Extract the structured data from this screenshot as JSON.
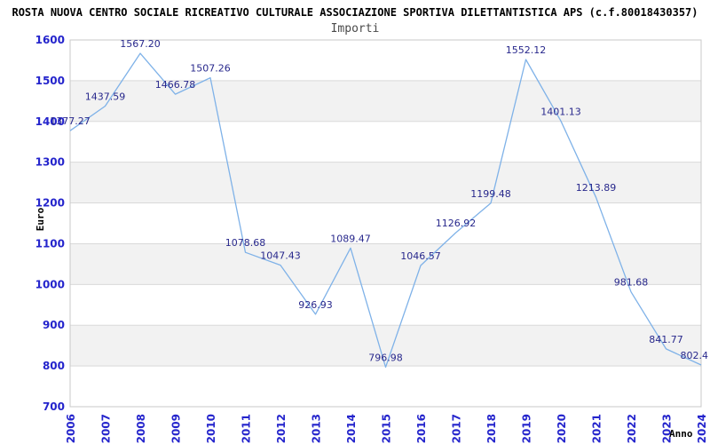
{
  "header": {
    "title": "ROSTA NUOVA CENTRO SOCIALE RICREATIVO CULTURALE ASSOCIAZIONE SPORTIVA DILETTANTISTICA APS (c.f.80018430357)",
    "subtitle": "Importi"
  },
  "chart_data": {
    "type": "line",
    "title": "Importi",
    "xlabel": "Anno",
    "ylabel": "Euro",
    "categories": [
      "2006",
      "2007",
      "2008",
      "2009",
      "2010",
      "2011",
      "2012",
      "2013",
      "2014",
      "2015",
      "2016",
      "2017",
      "2018",
      "2019",
      "2020",
      "2021",
      "2022",
      "2023",
      "2024"
    ],
    "series": [
      {
        "name": "Importi",
        "values": [
          1377.27,
          1437.59,
          1567.2,
          1466.78,
          1507.26,
          1078.68,
          1047.43,
          926.93,
          1089.47,
          796.98,
          1046.57,
          1126.92,
          1199.48,
          1552.12,
          1401.13,
          1213.89,
          981.68,
          841.77,
          802.4
        ]
      }
    ],
    "point_labels": [
      "1377.27",
      "1437.59",
      "1567.20",
      "1466.78",
      "1507.26",
      "1078.68",
      "1047.43",
      "926.93",
      "1089.47",
      "796.98",
      "1046.57",
      "1126.92",
      "1199.48",
      "1552.12",
      "1401.13",
      "1213.89",
      "981.68",
      "841.77",
      "802.4"
    ],
    "ylim": [
      700,
      1600
    ],
    "ytick_step": 100,
    "grid": true,
    "legend": "none",
    "colors": {
      "line": "#7fb2e8",
      "tick_label": "#2424cc",
      "point_label": "#28288c",
      "band": "#f2f2f2",
      "gridline": "#d9d9d9",
      "border": "#c8c8c8",
      "axis_title": "#000000"
    }
  }
}
